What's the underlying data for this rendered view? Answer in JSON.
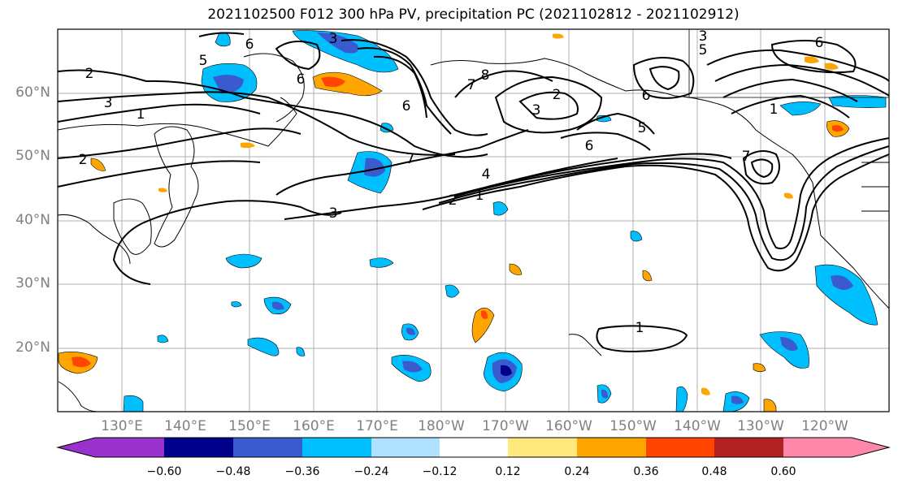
{
  "title": "2021102500 F012 300 hPa PV, precipitation PC (2021102812 - 2021102912)",
  "lat_labels": [
    "60°N",
    "50°N",
    "40°N",
    "30°N",
    "20°N"
  ],
  "lon_labels": [
    "130°E",
    "140°E",
    "150°E",
    "160°E",
    "170°E",
    "180°W",
    "170°W",
    "160°W",
    "150°W",
    "140°W",
    "130°W",
    "120°W"
  ],
  "contour_labels": [
    "6",
    "5",
    "3",
    "6",
    "2",
    "3",
    "1",
    "2",
    "6",
    "7",
    "3",
    "6",
    "7",
    "8",
    "3",
    "2",
    "6",
    "5",
    "4",
    "2",
    "1",
    "5",
    "6",
    "1",
    "7",
    "3",
    "1"
  ],
  "colorbar": {
    "tick_labels": [
      "−0.60",
      "−0.48",
      "−0.36",
      "−0.24",
      "−0.12",
      "0.12",
      "0.24",
      "0.36",
      "0.48",
      "0.60"
    ],
    "colors": [
      "#9932cc",
      "#00008b",
      "#3a5bd0",
      "#00bfff",
      "#b0e2ff",
      "#ffffff",
      "#ffe97f",
      "#ffa500",
      "#ff4500",
      "#b22222",
      "#ff88aa"
    ]
  },
  "colors": {
    "grid": "#b0b0b0",
    "axis_label": "#808080",
    "contour": "#000000"
  }
}
